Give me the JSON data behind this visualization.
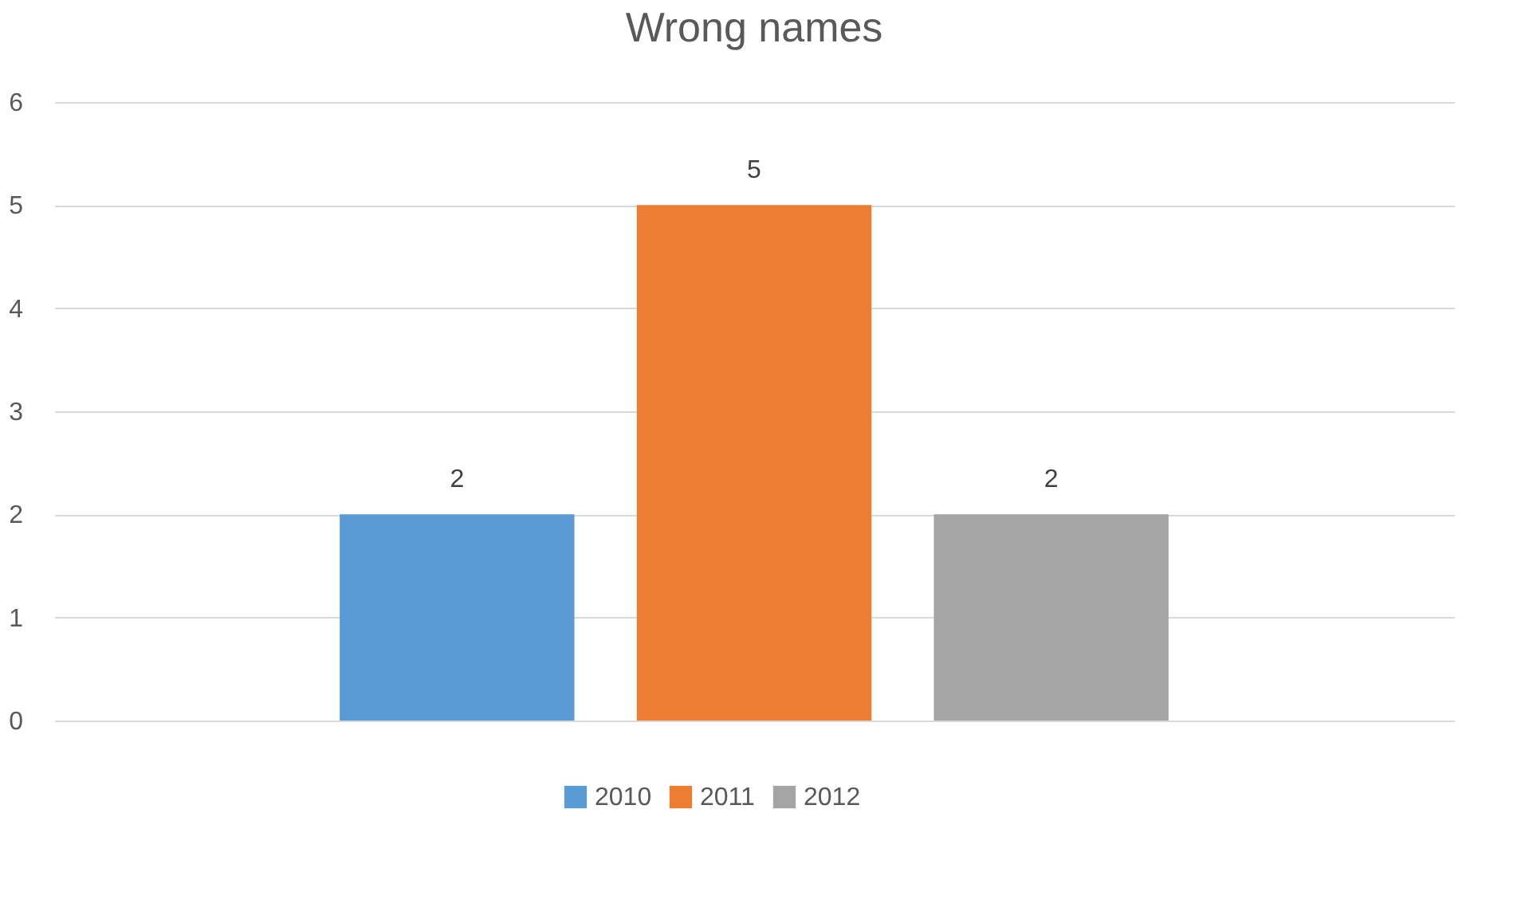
{
  "chart_data": {
    "type": "bar",
    "title": "Wrong names",
    "categories": [
      null
    ],
    "series": [
      {
        "name": "2010",
        "color": "#5b9bd5",
        "values": [
          2
        ]
      },
      {
        "name": "2011",
        "color": "#ed7d31",
        "values": [
          5
        ]
      },
      {
        "name": "2012",
        "color": "#a5a5a5",
        "values": [
          2
        ]
      }
    ],
    "ylim": [
      0,
      6
    ],
    "yticks": [
      0,
      1,
      2,
      3,
      4,
      5,
      6
    ],
    "grid": "y",
    "legend": "bottom",
    "data_labels": true
  }
}
